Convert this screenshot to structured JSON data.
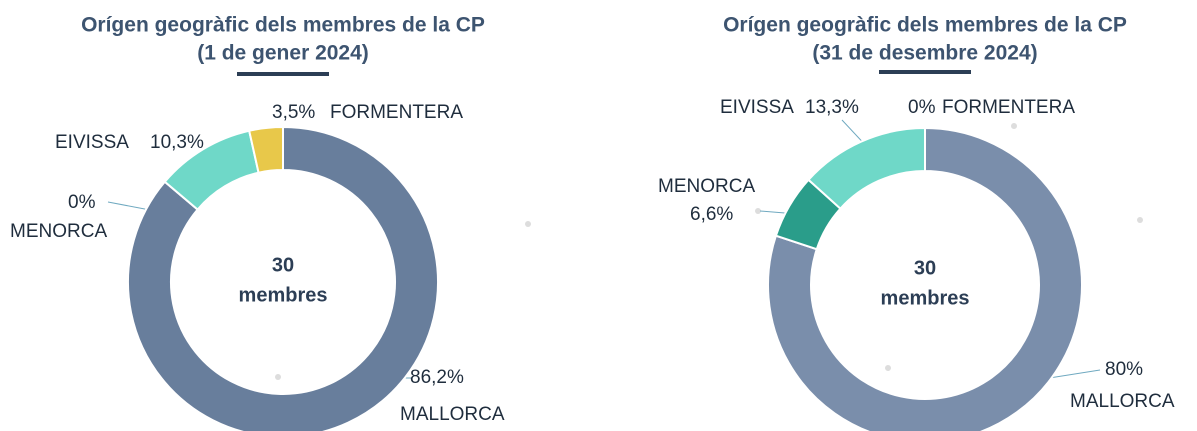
{
  "chart_data": [
    {
      "type": "donut",
      "title": "Orígen geogràfic dels membres de la CP",
      "subtitle": "(1 de gener 2024)",
      "center_value": 30,
      "center_label": "membres",
      "categories": [
        "MALLORCA",
        "MENORCA",
        "EIVISSA",
        "FORMENTERA"
      ],
      "values": [
        86.2,
        0,
        10.3,
        3.5
      ],
      "value_labels": [
        "86,2%",
        "0%",
        "10,3%",
        "3,5%"
      ],
      "colors": [
        "#687e9c",
        "#2a9d8a",
        "#6fd8c8",
        "#e8c84a"
      ]
    },
    {
      "type": "donut",
      "title": "Orígen geogràfic dels membres de la CP",
      "subtitle": "(31 de desembre 2024)",
      "center_value": 30,
      "center_label": "membres",
      "categories": [
        "MALLORCA",
        "MENORCA",
        "EIVISSA",
        "FORMENTERA"
      ],
      "values": [
        80,
        6.6,
        13.3,
        0
      ],
      "value_labels": [
        "80%",
        "6,6%",
        "13,3%",
        "0%"
      ],
      "colors": [
        "#7a8eab",
        "#2a9d8a",
        "#6fd8c8",
        "#e8c84a"
      ]
    }
  ]
}
